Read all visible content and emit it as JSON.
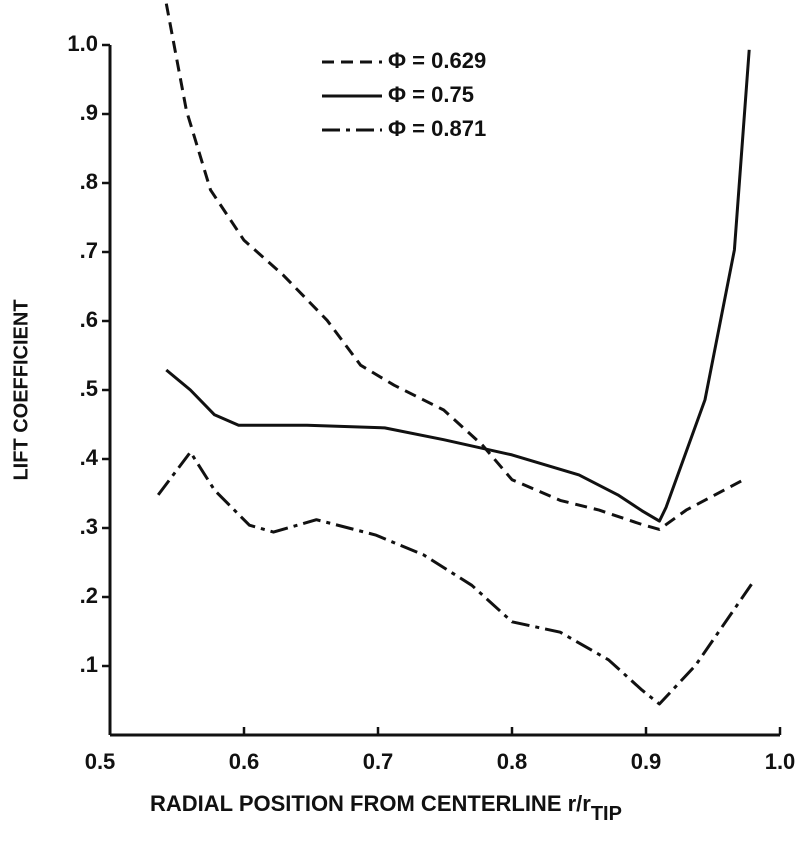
{
  "chart_data": {
    "type": "line",
    "xlabel": "RADIAL POSITION FROM CENTERLINE r/r",
    "xlabel_subscript": "TIP",
    "ylabel": "LIFT COEFFICIENT",
    "xlim": [
      0.5,
      1.0
    ],
    "ylim": [
      0,
      1.0
    ],
    "xticks": [
      0.5,
      0.6,
      0.7,
      0.8,
      0.9,
      {
        "value": 1.0,
        "label": "1.0"
      }
    ],
    "yticks": [
      {
        "value": 0.1,
        "label": ".1"
      },
      {
        "value": 0.2,
        "label": ".2"
      },
      {
        "value": 0.3,
        "label": ".3"
      },
      {
        "value": 0.4,
        "label": ".4"
      },
      {
        "value": 0.5,
        "label": ".5"
      },
      {
        "value": 0.6,
        "label": ".6"
      },
      {
        "value": 0.7,
        "label": ".7"
      },
      {
        "value": 0.8,
        "label": ".8"
      },
      {
        "value": 0.9,
        "label": ".9"
      },
      {
        "value": 1.0,
        "label": "1.0"
      }
    ],
    "legend": "upper center",
    "series": [
      {
        "name": "Φ = 0.629",
        "color": "#111111",
        "dash": "dashed",
        "x": [
          0.542,
          0.557,
          0.575,
          0.6,
          0.629,
          0.662,
          0.687,
          0.712,
          0.749,
          0.778,
          0.8,
          0.836,
          0.865,
          0.897,
          0.91,
          0.93,
          0.973
        ],
        "values": [
          1.06,
          0.905,
          0.79,
          0.717,
          0.667,
          0.601,
          0.536,
          0.507,
          0.471,
          0.42,
          0.37,
          0.34,
          0.326,
          0.305,
          0.298,
          0.326,
          0.37
        ]
      },
      {
        "name": "Φ = 0.75",
        "color": "#111111",
        "dash": "solid",
        "x": [
          0.542,
          0.56,
          0.578,
          0.596,
          0.647,
          0.705,
          0.749,
          0.8,
          0.85,
          0.879,
          0.897,
          0.91,
          0.915,
          0.944,
          0.966,
          0.977
        ],
        "values": [
          0.529,
          0.5,
          0.464,
          0.449,
          0.449,
          0.445,
          0.428,
          0.406,
          0.377,
          0.348,
          0.325,
          0.31,
          0.33,
          0.486,
          0.703,
          0.993
        ]
      },
      {
        "name": "Φ = 0.871",
        "color": "#111111",
        "dash": "dashdot",
        "x": [
          0.536,
          0.56,
          0.578,
          0.604,
          0.622,
          0.654,
          0.698,
          0.734,
          0.77,
          0.8,
          0.836,
          0.872,
          0.897,
          0.91,
          0.937,
          0.98
        ],
        "values": [
          0.348,
          0.41,
          0.355,
          0.304,
          0.294,
          0.312,
          0.29,
          0.261,
          0.217,
          0.164,
          0.149,
          0.109,
          0.065,
          0.045,
          0.101,
          0.222
        ]
      }
    ]
  }
}
